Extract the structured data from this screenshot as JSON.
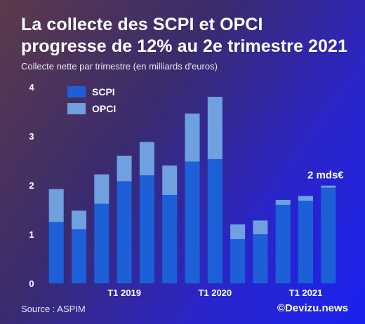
{
  "header": {
    "title": "La collecte des SCPI et OPCI progresse de 12% au 2e trimestre 2021",
    "subtitle": "Collecte nette par trimestre (en milliards d'euros)"
  },
  "footer": {
    "source": "Source : ASPIM",
    "brand": "©Devizu.news"
  },
  "colors": {
    "scpi": "#1d5fd6",
    "opci": "#6fa0e0",
    "text": "#ffffff"
  },
  "chart_data": {
    "type": "bar",
    "stacked": true,
    "title": "La collecte des SCPI et OPCI progresse de 12% au 2e trimestre 2021",
    "subtitle": "Collecte nette par trimestre (en milliards d'euros)",
    "xlabel": "",
    "ylabel": "",
    "ylim": [
      0,
      4
    ],
    "yticks": [
      0,
      1,
      2,
      3,
      4
    ],
    "grid": false,
    "legend_position": "top-left",
    "categories": [
      "",
      "",
      "",
      "T1 2019",
      "",
      "",
      "",
      "T1 2020",
      "",
      "",
      "",
      "T1 2021",
      ""
    ],
    "series": [
      {
        "name": "SCPI",
        "values": [
          1.25,
          1.1,
          1.62,
          2.08,
          2.2,
          1.8,
          2.48,
          2.53,
          0.9,
          1.0,
          1.6,
          1.68,
          1.95
        ]
      },
      {
        "name": "OPCI",
        "values": [
          0.67,
          0.38,
          0.6,
          0.52,
          0.68,
          0.6,
          0.98,
          1.27,
          0.3,
          0.28,
          0.1,
          0.1,
          0.04
        ]
      }
    ],
    "annotations": [
      {
        "text": "2 mds€",
        "category_index": 12
      }
    ]
  }
}
